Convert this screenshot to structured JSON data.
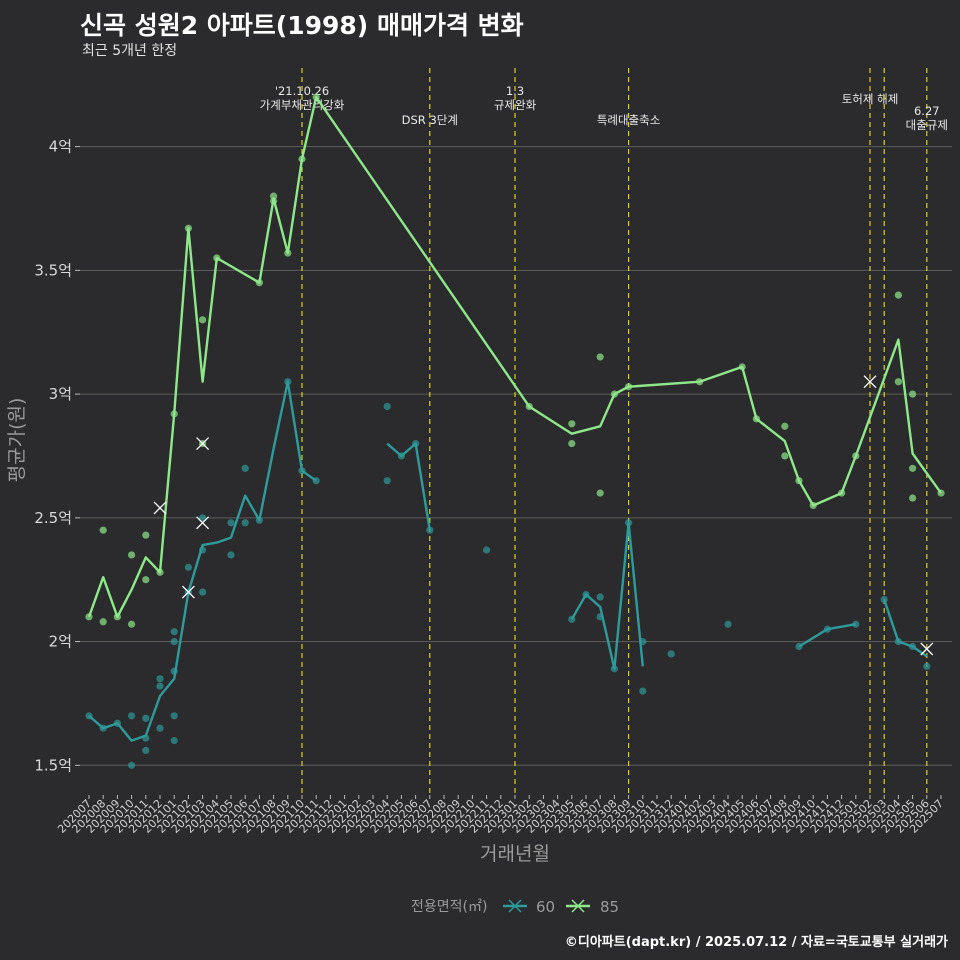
{
  "title": "신곡 성원2 아파트(1998) 매매가격 변화",
  "subtitle": "최근 5개년 한정",
  "caption": "©디아파트(dapt.kr) / 2025.07.12 / 자료=국토교통부 실거래가",
  "colors": {
    "background": "#2b2b2d",
    "grid": "#5c5c5c",
    "series_60": "#2e9a9a",
    "series_85": "#8ee88a",
    "events": "#d4d420"
  },
  "chart_data": {
    "type": "line",
    "title": "신곡 성원2 아파트(1998) 매매가격 변화",
    "subtitle": "최근 5개년 한정",
    "xlabel": "거래년월",
    "ylabel": "평균가(원)",
    "ylim": [
      1.38,
      4.35
    ],
    "y_ticks": [
      {
        "value": 1.5,
        "label": "1.5억"
      },
      {
        "value": 2.0,
        "label": "2억"
      },
      {
        "value": 2.5,
        "label": "2.5억"
      },
      {
        "value": 3.0,
        "label": "3억"
      },
      {
        "value": 3.5,
        "label": "3.5억"
      },
      {
        "value": 4.0,
        "label": "4억"
      }
    ],
    "x_categories": [
      "202007",
      "202008",
      "202009",
      "202010",
      "202011",
      "202012",
      "202101",
      "202102",
      "202103",
      "202104",
      "202105",
      "202106",
      "202107",
      "202108",
      "202109",
      "202110",
      "202111",
      "202112",
      "202201",
      "202202",
      "202203",
      "202204",
      "202205",
      "202206",
      "202207",
      "202208",
      "202209",
      "202210",
      "202211",
      "202212",
      "202301",
      "202302",
      "202303",
      "202304",
      "202305",
      "202306",
      "202307",
      "202308",
      "202309",
      "202310",
      "202311",
      "202312",
      "202401",
      "202402",
      "202403",
      "202404",
      "202405",
      "202406",
      "202407",
      "202408",
      "202409",
      "202410",
      "202411",
      "202412",
      "202501",
      "202502",
      "202503",
      "202504",
      "202505",
      "202506",
      "202507"
    ],
    "legend": {
      "title": "전용면적(㎡)",
      "position": "bottom",
      "items": [
        "60",
        "85"
      ]
    },
    "grid": true,
    "events": [
      {
        "x": "202110",
        "label": "'21.10.26\n가계부채관리강화",
        "row": 0
      },
      {
        "x": "202207",
        "label": "DSR 3단계",
        "row": 1
      },
      {
        "x": "202301",
        "label": "1.3\n규제완화",
        "row": 0
      },
      {
        "x": "202309",
        "label": "특례대출축소",
        "row": 1
      },
      {
        "x": "202502",
        "label": "토허제 해제",
        "row": 0
      },
      {
        "x": "202503",
        "label": "",
        "row": 0
      },
      {
        "x": "202506",
        "label": "6.27\n대출규제",
        "row": 1
      }
    ],
    "series": [
      {
        "name": "60",
        "line": [
          {
            "x": "202007",
            "y": 1.7
          },
          {
            "x": "202008",
            "y": 1.65
          },
          {
            "x": "202009",
            "y": 1.67
          },
          {
            "x": "202010",
            "y": 1.6
          },
          {
            "x": "202011",
            "y": 1.62
          },
          {
            "x": "202012",
            "y": 1.78
          },
          {
            "x": "202101",
            "y": 1.85
          },
          {
            "x": "202102",
            "y": 2.2
          },
          {
            "x": "202103",
            "y": 2.39
          },
          {
            "x": "202104",
            "y": 2.4
          },
          {
            "x": "202105",
            "y": 2.42
          },
          {
            "x": "202106",
            "y": 2.59
          },
          {
            "x": "202107",
            "y": 2.49
          },
          {
            "x": "202108",
            "y": 2.78
          },
          {
            "x": "202109",
            "y": 3.05
          },
          {
            "x": "202110",
            "y": 2.69
          },
          {
            "x": "202111",
            "y": 2.65
          },
          null,
          {
            "x": "202204",
            "y": 2.8
          },
          {
            "x": "202205",
            "y": 2.75
          },
          {
            "x": "202206",
            "y": 2.8
          },
          {
            "x": "202207",
            "y": 2.45
          },
          null,
          {
            "x": "202305",
            "y": 2.09
          },
          {
            "x": "202306",
            "y": 2.19
          },
          {
            "x": "202307",
            "y": 2.14
          },
          {
            "x": "202308",
            "y": 1.89
          },
          {
            "x": "202309",
            "y": 2.48
          },
          {
            "x": "202310",
            "y": 1.9
          },
          null,
          {
            "x": "202409",
            "y": 1.98
          },
          {
            "x": "202411",
            "y": 2.05
          },
          {
            "x": "202501",
            "y": 2.07
          },
          null,
          {
            "x": "202503",
            "y": 2.17
          },
          {
            "x": "202504",
            "y": 2.0
          },
          {
            "x": "202505",
            "y": 1.98
          },
          {
            "x": "202506",
            "y": 1.94
          }
        ],
        "points": [
          {
            "x": "202007",
            "y": 1.7
          },
          {
            "x": "202008",
            "y": 1.65
          },
          {
            "x": "202009",
            "y": 1.67
          },
          {
            "x": "202010",
            "y": 1.7
          },
          {
            "x": "202010",
            "y": 1.5
          },
          {
            "x": "202011",
            "y": 1.69
          },
          {
            "x": "202011",
            "y": 1.56
          },
          {
            "x": "202011",
            "y": 1.61
          },
          {
            "x": "202012",
            "y": 1.85
          },
          {
            "x": "202012",
            "y": 1.82
          },
          {
            "x": "202012",
            "y": 1.65
          },
          {
            "x": "202101",
            "y": 2.04
          },
          {
            "x": "202101",
            "y": 2.0
          },
          {
            "x": "202101",
            "y": 1.88
          },
          {
            "x": "202101",
            "y": 1.7
          },
          {
            "x": "202101",
            "y": 1.6
          },
          {
            "x": "202102",
            "y": 2.3
          },
          {
            "x": "202102",
            "y": 2.2
          },
          {
            "x": "202103",
            "y": 2.5
          },
          {
            "x": "202103",
            "y": 2.37
          },
          {
            "x": "202103",
            "y": 2.2
          },
          {
            "x": "202105",
            "y": 2.48
          },
          {
            "x": "202105",
            "y": 2.35
          },
          {
            "x": "202106",
            "y": 2.7
          },
          {
            "x": "202106",
            "y": 2.48
          },
          {
            "x": "202107",
            "y": 2.49
          },
          {
            "x": "202109",
            "y": 3.05
          },
          {
            "x": "202110",
            "y": 2.69
          },
          {
            "x": "202111",
            "y": 2.65
          },
          {
            "x": "202204",
            "y": 2.95
          },
          {
            "x": "202204",
            "y": 2.65
          },
          {
            "x": "202205",
            "y": 2.75
          },
          {
            "x": "202206",
            "y": 2.8
          },
          {
            "x": "202207",
            "y": 2.45
          },
          {
            "x": "202211",
            "y": 2.37
          },
          {
            "x": "202305",
            "y": 2.09
          },
          {
            "x": "202306",
            "y": 2.19
          },
          {
            "x": "202307",
            "y": 2.18
          },
          {
            "x": "202307",
            "y": 2.1
          },
          {
            "x": "202308",
            "y": 1.89
          },
          {
            "x": "202309",
            "y": 2.48
          },
          {
            "x": "202310",
            "y": 2.0
          },
          {
            "x": "202310",
            "y": 1.8
          },
          {
            "x": "202312",
            "y": 1.95
          },
          {
            "x": "202404",
            "y": 2.07
          },
          {
            "x": "202409",
            "y": 1.98
          },
          {
            "x": "202411",
            "y": 2.05
          },
          {
            "x": "202501",
            "y": 2.07
          },
          {
            "x": "202503",
            "y": 2.17
          },
          {
            "x": "202504",
            "y": 2.0
          },
          {
            "x": "202505",
            "y": 1.98
          },
          {
            "x": "202506",
            "y": 1.9
          }
        ],
        "crosses": [
          {
            "x": "202102",
            "y": 2.2
          },
          {
            "x": "202103",
            "y": 2.48
          },
          {
            "x": "202506",
            "y": 1.97
          }
        ]
      },
      {
        "name": "85",
        "line": [
          {
            "x": "202007",
            "y": 2.1
          },
          {
            "x": "202008",
            "y": 2.26
          },
          {
            "x": "202009",
            "y": 2.1
          },
          {
            "x": "202010",
            "y": 2.21
          },
          {
            "x": "202011",
            "y": 2.34
          },
          {
            "x": "202012",
            "y": 2.28
          },
          {
            "x": "202101",
            "y": 2.92
          },
          {
            "x": "202102",
            "y": 3.67
          },
          {
            "x": "202103",
            "y": 3.05
          },
          {
            "x": "202104",
            "y": 3.55
          },
          {
            "x": "202107",
            "y": 3.45
          },
          {
            "x": "202108",
            "y": 3.79
          },
          {
            "x": "202109",
            "y": 3.57
          },
          {
            "x": "202110",
            "y": 3.95
          },
          {
            "x": "202111",
            "y": 4.2
          },
          {
            "x": "202302",
            "y": 2.95
          },
          {
            "x": "202305",
            "y": 2.84
          },
          {
            "x": "202307",
            "y": 2.87
          },
          {
            "x": "202308",
            "y": 3.0
          },
          {
            "x": "202309",
            "y": 3.03
          },
          {
            "x": "202402",
            "y": 3.05
          },
          {
            "x": "202405",
            "y": 3.11
          },
          {
            "x": "202406",
            "y": 2.9
          },
          {
            "x": "202408",
            "y": 2.81
          },
          {
            "x": "202409",
            "y": 2.65
          },
          {
            "x": "202410",
            "y": 2.55
          },
          {
            "x": "202412",
            "y": 2.6
          },
          {
            "x": "202501",
            "y": 2.75
          },
          {
            "x": "202504",
            "y": 3.22
          },
          {
            "x": "202505",
            "y": 2.76
          },
          {
            "x": "202507",
            "y": 2.6
          }
        ],
        "points": [
          {
            "x": "202007",
            "y": 2.1
          },
          {
            "x": "202008",
            "y": 2.45
          },
          {
            "x": "202008",
            "y": 2.08
          },
          {
            "x": "202009",
            "y": 2.1
          },
          {
            "x": "202010",
            "y": 2.35
          },
          {
            "x": "202010",
            "y": 2.07
          },
          {
            "x": "202011",
            "y": 2.43
          },
          {
            "x": "202011",
            "y": 2.25
          },
          {
            "x": "202012",
            "y": 2.28
          },
          {
            "x": "202101",
            "y": 2.92
          },
          {
            "x": "202102",
            "y": 3.67
          },
          {
            "x": "202103",
            "y": 3.3
          },
          {
            "x": "202103",
            "y": 2.8
          },
          {
            "x": "202104",
            "y": 3.55
          },
          {
            "x": "202107",
            "y": 3.45
          },
          {
            "x": "202108",
            "y": 3.8
          },
          {
            "x": "202108",
            "y": 3.78
          },
          {
            "x": "202109",
            "y": 3.57
          },
          {
            "x": "202110",
            "y": 3.95
          },
          {
            "x": "202111",
            "y": 4.2
          },
          {
            "x": "202302",
            "y": 2.95
          },
          {
            "x": "202305",
            "y": 2.88
          },
          {
            "x": "202305",
            "y": 2.8
          },
          {
            "x": "202307",
            "y": 3.15
          },
          {
            "x": "202307",
            "y": 2.6
          },
          {
            "x": "202308",
            "y": 3.0
          },
          {
            "x": "202309",
            "y": 3.03
          },
          {
            "x": "202402",
            "y": 3.05
          },
          {
            "x": "202405",
            "y": 3.11
          },
          {
            "x": "202406",
            "y": 2.9
          },
          {
            "x": "202408",
            "y": 2.87
          },
          {
            "x": "202408",
            "y": 2.75
          },
          {
            "x": "202409",
            "y": 2.65
          },
          {
            "x": "202410",
            "y": 2.55
          },
          {
            "x": "202412",
            "y": 2.6
          },
          {
            "x": "202501",
            "y": 2.75
          },
          {
            "x": "202504",
            "y": 3.4
          },
          {
            "x": "202504",
            "y": 3.05
          },
          {
            "x": "202505",
            "y": 3.0
          },
          {
            "x": "202505",
            "y": 2.7
          },
          {
            "x": "202505",
            "y": 2.58
          },
          {
            "x": "202507",
            "y": 2.6
          }
        ],
        "crosses": [
          {
            "x": "202012",
            "y": 2.54
          },
          {
            "x": "202103",
            "y": 2.8
          },
          {
            "x": "202502",
            "y": 3.05
          }
        ]
      }
    ]
  }
}
